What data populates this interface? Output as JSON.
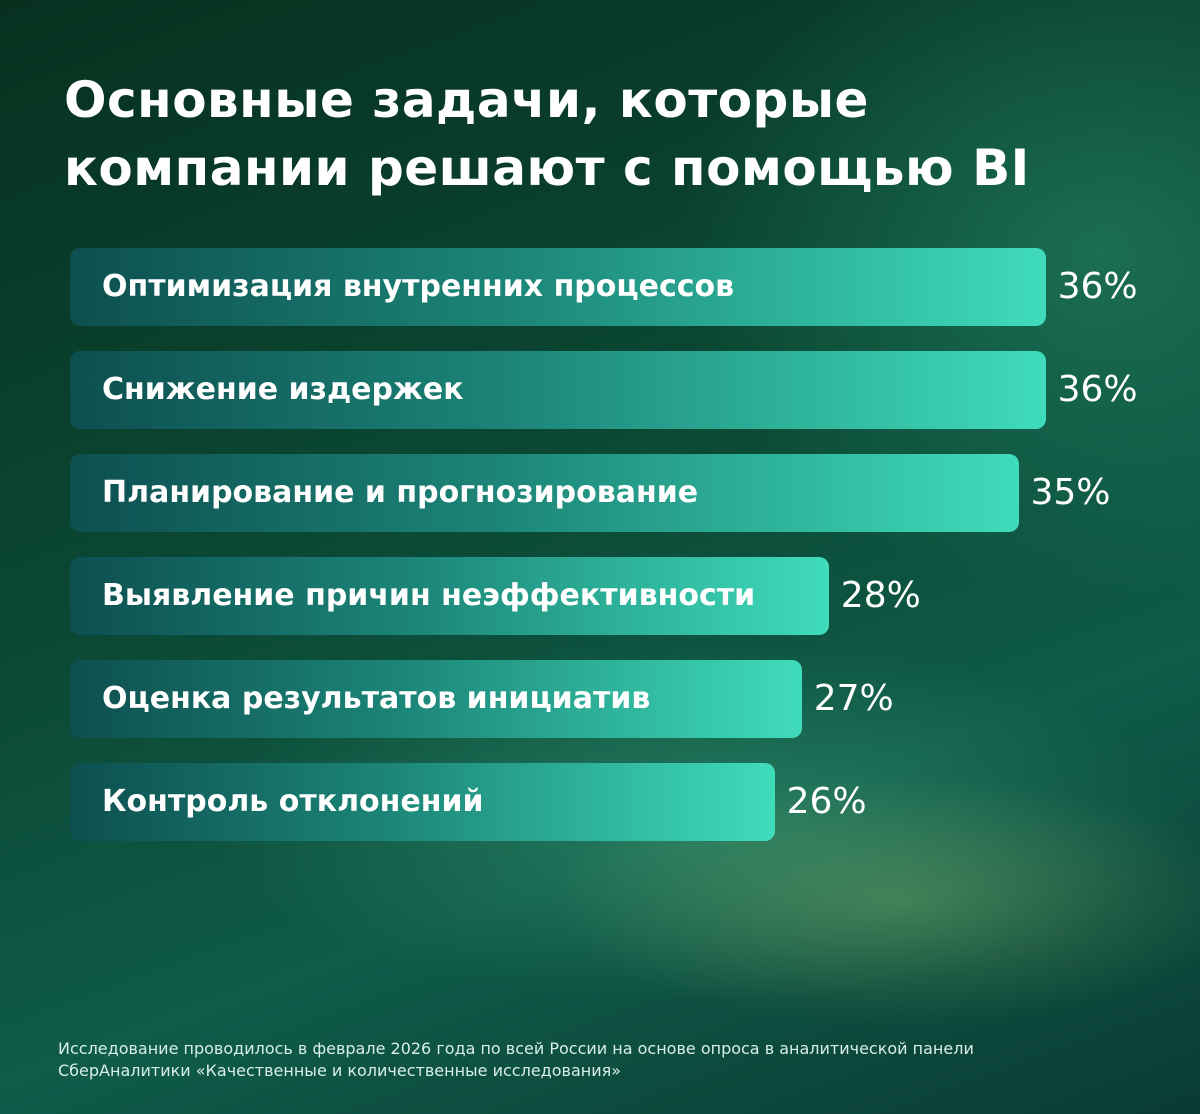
{
  "chart_data": {
    "type": "bar",
    "orientation": "horizontal",
    "title": "Основные задачи, которые компании решают с помощью BI",
    "categories": [
      "Оптимизация внутренних процессов",
      "Снижение издержек",
      "Планирование и прогнозирование",
      "Выявление причин неэффективности",
      "Оценка результатов инициатив",
      "Контроль отклонений"
    ],
    "values": [
      36,
      36,
      35,
      28,
      27,
      26
    ],
    "value_labels": [
      "36%",
      "36%",
      "35%",
      "28%",
      "27%",
      "26%"
    ],
    "color": "#3fdcbb",
    "footnote": "Исследование проводилось в феврале 2026 года по всей России на основе опроса в аналитической панели СберАналитики «Качественные и количественные исследования»"
  }
}
